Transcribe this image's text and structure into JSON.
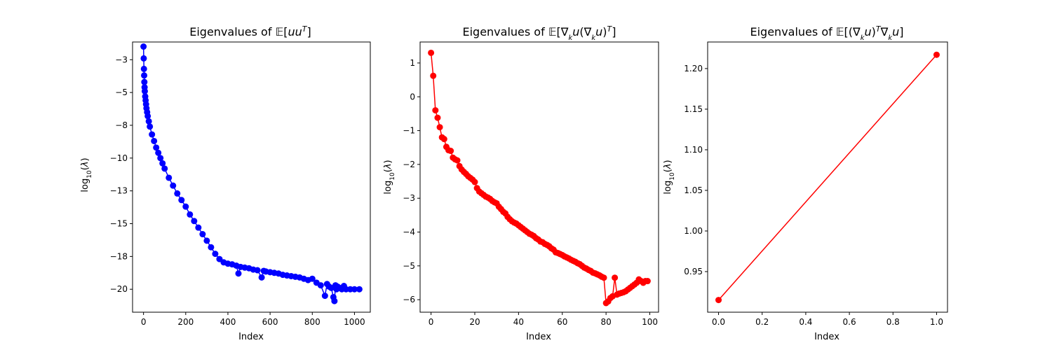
{
  "chart_data": [
    {
      "type": "line",
      "title": "Eigenvalues of 𝔼[uu^T]",
      "xlabel": "Index",
      "ylabel": "log10(λ)",
      "xlim": [
        -52,
        1075
      ],
      "ylim": [
        -21.75,
        -1.15
      ],
      "xticks": [
        0,
        200,
        400,
        600,
        800,
        1000
      ],
      "yticks": [
        -2.5,
        -5.0,
        -7.5,
        -10.0,
        -12.5,
        -15.0,
        -17.5,
        -20.0
      ],
      "color": "#0000ff",
      "marker": "circle",
      "series": [
        {
          "x": [
            0,
            1,
            2,
            3,
            4,
            5,
            6,
            8,
            10,
            12,
            14,
            17,
            20,
            25,
            30,
            40,
            50,
            60,
            70,
            80,
            90,
            100,
            120,
            140,
            160,
            180,
            200,
            220,
            240,
            260,
            280,
            300,
            320,
            340,
            360,
            380,
            400,
            420,
            440,
            450,
            460,
            480,
            500,
            520,
            540,
            560,
            570,
            580,
            600,
            620,
            640,
            660,
            680,
            700,
            720,
            740,
            760,
            780,
            800,
            820,
            840,
            860,
            870,
            880,
            890,
            900,
            905,
            910,
            915,
            920,
            930,
            940,
            950,
            960,
            980,
            1000,
            1023
          ],
          "y": [
            -1.5,
            -2.4,
            -3.2,
            -3.7,
            -4.2,
            -4.6,
            -4.9,
            -5.3,
            -5.6,
            -5.9,
            -6.2,
            -6.5,
            -6.8,
            -7.2,
            -7.6,
            -8.2,
            -8.7,
            -9.2,
            -9.6,
            -10.0,
            -10.4,
            -10.8,
            -11.5,
            -12.1,
            -12.7,
            -13.2,
            -13.7,
            -14.3,
            -14.8,
            -15.3,
            -15.8,
            -16.3,
            -16.8,
            -17.3,
            -17.7,
            -17.95,
            -18.05,
            -18.1,
            -18.2,
            -18.8,
            -18.3,
            -18.35,
            -18.4,
            -18.5,
            -18.55,
            -19.1,
            -18.6,
            -18.65,
            -18.7,
            -18.75,
            -18.8,
            -18.9,
            -18.95,
            -19.0,
            -19.05,
            -19.1,
            -19.2,
            -19.3,
            -19.2,
            -19.5,
            -19.7,
            -20.5,
            -19.6,
            -19.8,
            -19.9,
            -20.6,
            -20.9,
            -19.7,
            -20.0,
            -19.8,
            -19.9,
            -20.0,
            -19.75,
            -20.0,
            -20.0,
            -20.0,
            -20.0
          ]
        }
      ]
    },
    {
      "type": "line",
      "title": "Eigenvalues of 𝔼[∇_k u(∇_k u)^T]",
      "xlabel": "Index",
      "ylabel": "log10(λ)",
      "xlim": [
        -5,
        104
      ],
      "ylim": [
        -6.37,
        1.62
      ],
      "xticks": [
        0,
        20,
        40,
        60,
        80,
        100
      ],
      "yticks": [
        1,
        0,
        -1,
        -2,
        -3,
        -4,
        -5,
        -6
      ],
      "color": "#ff0000",
      "marker": "circle",
      "series": [
        {
          "x": [
            0,
            1,
            2,
            3,
            4,
            5,
            6,
            7,
            8,
            9,
            10,
            11,
            12,
            13,
            14,
            15,
            16,
            17,
            18,
            19,
            20,
            21,
            22,
            23,
            24,
            25,
            26,
            27,
            28,
            29,
            30,
            31,
            32,
            33,
            34,
            35,
            36,
            37,
            38,
            39,
            40,
            41,
            42,
            43,
            44,
            45,
            46,
            47,
            48,
            49,
            50,
            51,
            52,
            53,
            54,
            55,
            56,
            57,
            58,
            59,
            60,
            61,
            62,
            63,
            64,
            65,
            66,
            67,
            68,
            69,
            70,
            71,
            72,
            73,
            74,
            75,
            76,
            77,
            78,
            79,
            80,
            81,
            82,
            83,
            84,
            85,
            86,
            87,
            88,
            89,
            90,
            91,
            92,
            93,
            94,
            95,
            96,
            97,
            98,
            99
          ],
          "y": [
            1.3,
            0.62,
            -0.4,
            -0.62,
            -0.9,
            -1.2,
            -1.25,
            -1.48,
            -1.58,
            -1.6,
            -1.8,
            -1.85,
            -1.88,
            -2.05,
            -2.15,
            -2.22,
            -2.28,
            -2.35,
            -2.4,
            -2.45,
            -2.52,
            -2.7,
            -2.8,
            -2.85,
            -2.9,
            -2.95,
            -2.98,
            -3.02,
            -3.08,
            -3.12,
            -3.15,
            -3.25,
            -3.32,
            -3.4,
            -3.45,
            -3.55,
            -3.62,
            -3.68,
            -3.72,
            -3.75,
            -3.8,
            -3.85,
            -3.9,
            -3.95,
            -4.0,
            -4.05,
            -4.08,
            -4.12,
            -4.18,
            -4.22,
            -4.28,
            -4.3,
            -4.35,
            -4.38,
            -4.42,
            -4.48,
            -4.52,
            -4.6,
            -4.62,
            -4.65,
            -4.68,
            -4.72,
            -4.75,
            -4.78,
            -4.82,
            -4.85,
            -4.88,
            -4.92,
            -4.95,
            -5.0,
            -5.05,
            -5.08,
            -5.12,
            -5.15,
            -5.2,
            -5.22,
            -5.25,
            -5.28,
            -5.32,
            -5.35,
            -6.1,
            -6.05,
            -5.95,
            -5.9,
            -5.35,
            -5.85,
            -5.82,
            -5.8,
            -5.78,
            -5.75,
            -5.7,
            -5.65,
            -5.6,
            -5.55,
            -5.5,
            -5.4,
            -5.45,
            -5.5,
            -5.45,
            -5.45
          ]
        }
      ]
    },
    {
      "type": "line",
      "title": "Eigenvalues of 𝔼[(∇_k u)^T ∇_k u]",
      "xlabel": "Index",
      "ylabel": "log10(λ)",
      "xlim": [
        -0.05,
        1.05
      ],
      "ylim": [
        0.9,
        1.2327
      ],
      "xticks": [
        0.0,
        0.2,
        0.4,
        0.6,
        0.8,
        1.0
      ],
      "yticks": [
        0.95,
        1.0,
        1.05,
        1.1,
        1.15,
        1.2
      ],
      "color": "#ff0000",
      "marker": "circle",
      "series": [
        {
          "x": [
            0,
            1
          ],
          "y": [
            0.915,
            1.217
          ]
        }
      ]
    }
  ]
}
